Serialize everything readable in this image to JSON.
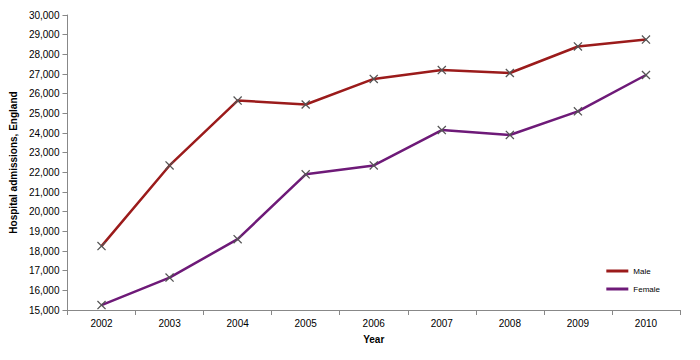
{
  "chart_data": {
    "type": "line",
    "x_label": "Year",
    "y_label": "Hospital admissions, England",
    "categories": [
      "2002",
      "2003",
      "2004",
      "2005",
      "2006",
      "2007",
      "2008",
      "2009",
      "2010"
    ],
    "series": [
      {
        "name": "Male",
        "color": "#9b1b1b",
        "marker": "x",
        "values": [
          18250,
          22350,
          25650,
          25450,
          26750,
          27200,
          27050,
          28400,
          28750
        ]
      },
      {
        "name": "Female",
        "color": "#6e1a78",
        "marker": "x",
        "values": [
          15250,
          16650,
          18600,
          21900,
          22350,
          24150,
          23900,
          25100,
          26950
        ]
      }
    ],
    "ylim": [
      15000,
      30000
    ],
    "yticks": [
      {
        "value": 15000,
        "label": "15,000"
      },
      {
        "value": 16000,
        "label": "16,000"
      },
      {
        "value": 17000,
        "label": "17,000"
      },
      {
        "value": 18000,
        "label": "18,000"
      },
      {
        "value": 19000,
        "label": "19,000"
      },
      {
        "value": 20000,
        "label": "20,000"
      },
      {
        "value": 21000,
        "label": "21,000"
      },
      {
        "value": 22000,
        "label": "22,000"
      },
      {
        "value": 23000,
        "label": "23,000"
      },
      {
        "value": 24000,
        "label": "24,000"
      },
      {
        "value": 25000,
        "label": "25,000"
      },
      {
        "value": 26000,
        "label": "26,000"
      },
      {
        "value": 27000,
        "label": "27,000"
      },
      {
        "value": 28000,
        "label": "28,000"
      },
      {
        "value": 29000,
        "label": "29,000"
      },
      {
        "value": 30000,
        "label": "30,000"
      }
    ],
    "grid": false,
    "legend": "lower right"
  }
}
